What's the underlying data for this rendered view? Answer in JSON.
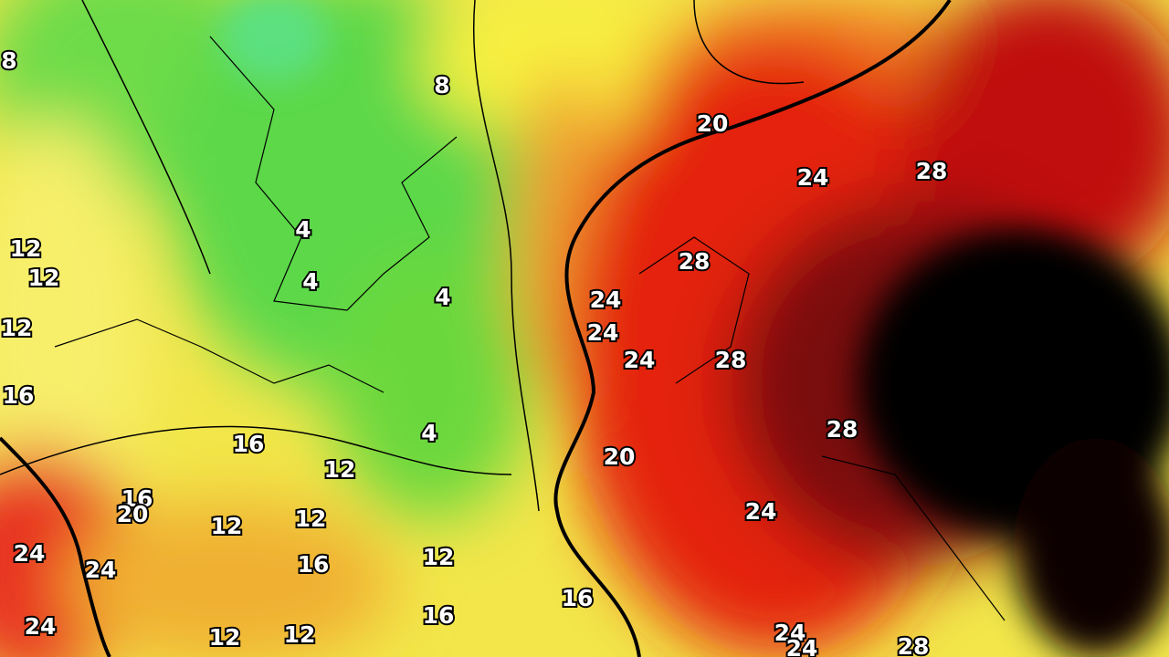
{
  "map": {
    "contour_labels": [
      8,
      8,
      20,
      24,
      28,
      4,
      12,
      12,
      4,
      4,
      28,
      24,
      24,
      12,
      24,
      28,
      16,
      4,
      28,
      16,
      20,
      12,
      16,
      20,
      24,
      12,
      12,
      24,
      24,
      16,
      12,
      16,
      16,
      24,
      12,
      12,
      24,
      24,
      28
    ]
  }
}
